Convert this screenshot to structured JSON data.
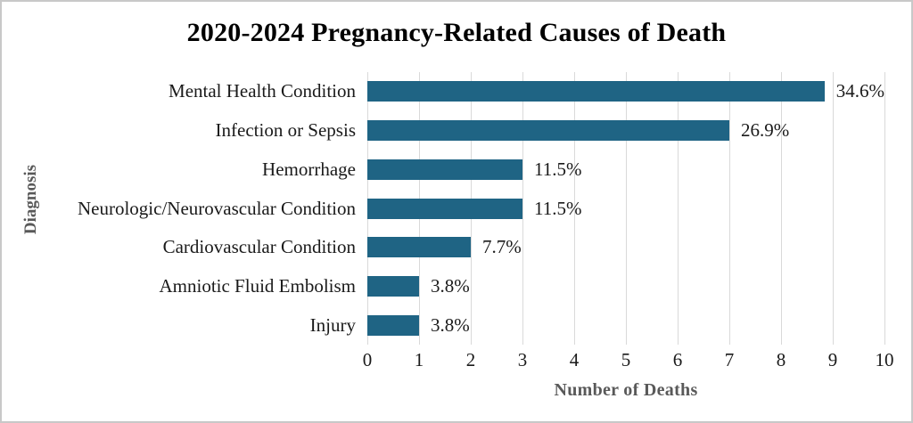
{
  "chart_data": {
    "type": "bar",
    "orientation": "horizontal",
    "title": "2020-2024 Pregnancy-Related Causes of Death",
    "xlabel": "Number of Deaths",
    "ylabel": "Diagnosis",
    "categories": [
      "Mental Health Condition",
      "Infection or Sepsis",
      "Hemorrhage",
      "Neurologic/Neurovascular Condition",
      "Cardiovascular Condition",
      "Amniotic Fluid Embolism",
      "Injury"
    ],
    "values": [
      9,
      7,
      3,
      3,
      2,
      1,
      1
    ],
    "value_labels": [
      "34.6%",
      "26.9%",
      "11.5%",
      "11.5%",
      "7.7%",
      "3.8%",
      "3.8%"
    ],
    "xlim": [
      0,
      10
    ],
    "x_ticks": [
      "0",
      "1",
      "2",
      "3",
      "4",
      "5",
      "6",
      "7",
      "8",
      "9",
      "10"
    ],
    "grid": true,
    "legend": "none",
    "bar_color": "#1f6484",
    "gridline_color": "#d9d9d9",
    "axis_title_color": "#595959",
    "text_color": "#1a1a1a",
    "background_color": "#ffffff"
  }
}
